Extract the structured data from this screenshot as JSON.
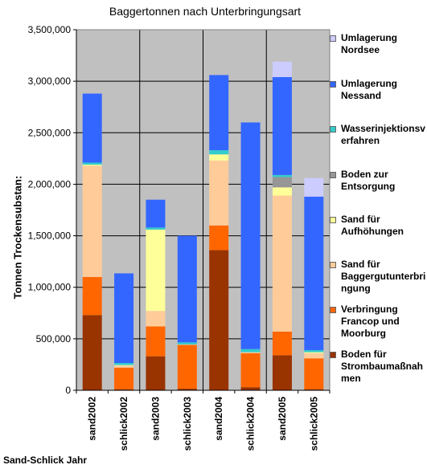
{
  "chart_data": {
    "type": "bar",
    "stacked": true,
    "title": "Baggertonnen nach Unterbringungsart",
    "xlabel": "Sand-Schlick Jahr",
    "ylabel": "Tonnen Trockensubstan:",
    "ylim": [
      0,
      3500000
    ],
    "yticks": [
      "0",
      "500,000",
      "1,000,000",
      "1,500,000",
      "2,000,000",
      "2,500,000",
      "3,000,000",
      "3,500,000"
    ],
    "ytick_values": [
      0,
      500000,
      1000000,
      1500000,
      2000000,
      2500000,
      3000000,
      3500000
    ],
    "categories": [
      "sand2002",
      "schlick2002",
      "sand2003",
      "schlick2003",
      "sand2004",
      "schlick2004",
      "sand2005",
      "schlick2005"
    ],
    "legend_position": "right",
    "series": [
      {
        "name": "Boden für Strombaumaßnahmen",
        "color": "#993300",
        "values": [
          730000,
          10000,
          330000,
          15000,
          1360000,
          30000,
          340000,
          10000
        ]
      },
      {
        "name": "Verbringung Francop und Moorburg",
        "color": "#ff6600",
        "values": [
          370000,
          210000,
          290000,
          425000,
          240000,
          330000,
          230000,
          300000
        ]
      },
      {
        "name": "Sand für Baggergutunterbringung",
        "color": "#ffcc99",
        "values": [
          1080000,
          20000,
          150000,
          5000,
          630000,
          10000,
          1320000,
          50000
        ]
      },
      {
        "name": "Sand für Aufhöhungen",
        "color": "#ffff99",
        "values": [
          10000,
          5000,
          790000,
          0,
          60000,
          0,
          80000,
          10000
        ]
      },
      {
        "name": "Boden zur Entsorgung",
        "color": "#969696",
        "values": [
          0,
          0,
          0,
          0,
          0,
          0,
          100000,
          0
        ]
      },
      {
        "name": "Wasserinjektionsverfahren",
        "color": "#33cccc",
        "values": [
          20000,
          20000,
          20000,
          20000,
          40000,
          30000,
          20000,
          20000
        ]
      },
      {
        "name": "Umlagerung Nessand",
        "color": "#3366ff",
        "values": [
          670000,
          870000,
          270000,
          1035000,
          730000,
          2200000,
          950000,
          1490000
        ]
      },
      {
        "name": "Umlagerung Nordsee",
        "color": "#ccccff",
        "values": [
          0,
          0,
          0,
          0,
          0,
          0,
          150000,
          180000
        ]
      }
    ]
  },
  "legend": {
    "items": [
      {
        "line1": "Umlagerung",
        "line2": "Nordsee",
        "line3": "",
        "color": "#ccccff"
      },
      {
        "line1": "Umlagerung",
        "line2": "Nessand",
        "line3": "",
        "color": "#3366ff"
      },
      {
        "line1": "Wasserinjektionsv",
        "line2": "erfahren",
        "line3": "",
        "color": "#33cccc"
      },
      {
        "line1": "Boden zur",
        "line2": "Entsorgung",
        "line3": "",
        "color": "#969696"
      },
      {
        "line1": "Sand für",
        "line2": "Aufhöhungen",
        "line3": "",
        "color": "#ffff99"
      },
      {
        "line1": "Sand für",
        "line2": "Baggergutunterbri",
        "line3": "ngung",
        "color": "#ffcc99"
      },
      {
        "line1": "Verbringung",
        "line2": "Francop und",
        "line3": "Moorburg",
        "color": "#ff6600"
      },
      {
        "line1": "Boden für",
        "line2": "Strombaumaßnah",
        "line3": "men",
        "color": "#993300"
      }
    ]
  }
}
